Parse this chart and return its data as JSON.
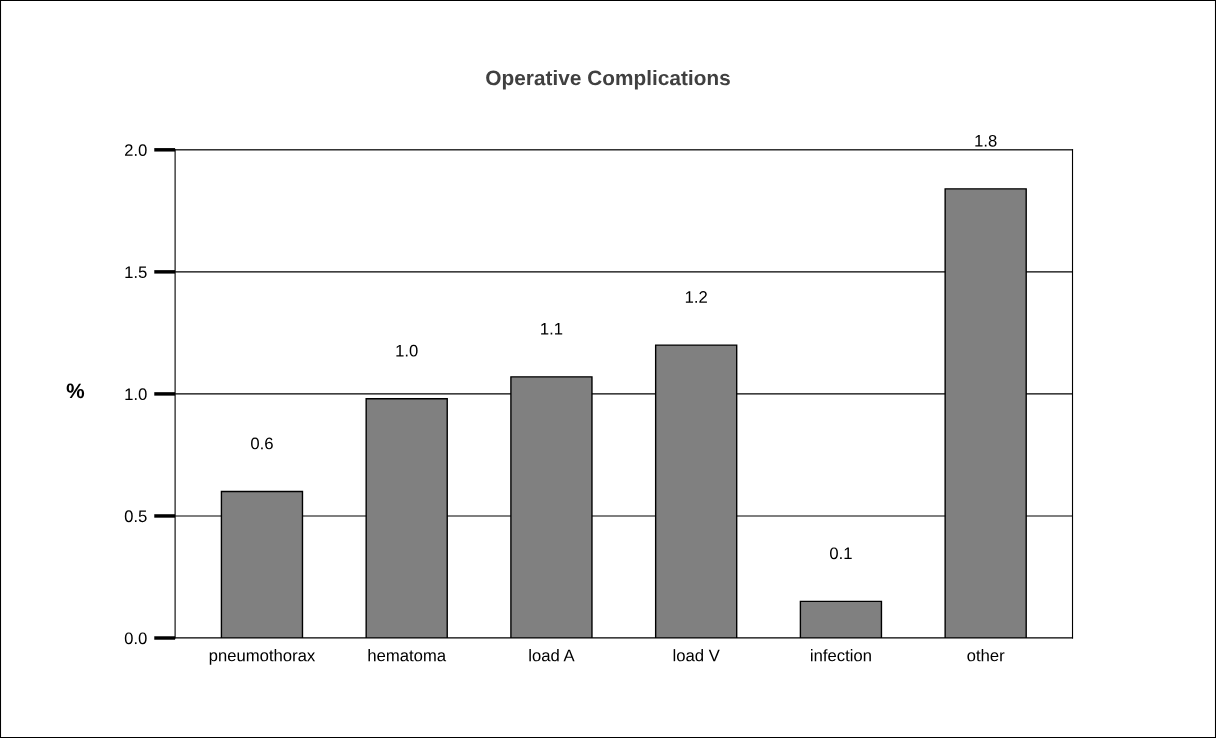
{
  "chart_data": {
    "type": "bar",
    "title": "Operative Complications",
    "ylabel": "%",
    "categories": [
      "pneumothorax",
      "hematoma",
      "load A",
      "load V",
      "infection",
      "other"
    ],
    "values": [
      0.6,
      0.98,
      1.07,
      1.2,
      0.15,
      1.84
    ],
    "value_labels": [
      "0.6",
      "1.0",
      "1.1",
      "1.2",
      "0.1",
      "1.8"
    ],
    "color": "#808080",
    "ylim": [
      0,
      2.0
    ],
    "yticks": [
      {
        "value": 0,
        "label": "0.0"
      },
      {
        "value": 0.5,
        "label": "0.5"
      },
      {
        "value": 1.0,
        "label": "1.0"
      },
      {
        "value": 1.5,
        "label": "1.5"
      },
      {
        "value": 2.0,
        "label": "2.0"
      }
    ],
    "grid": "y"
  }
}
